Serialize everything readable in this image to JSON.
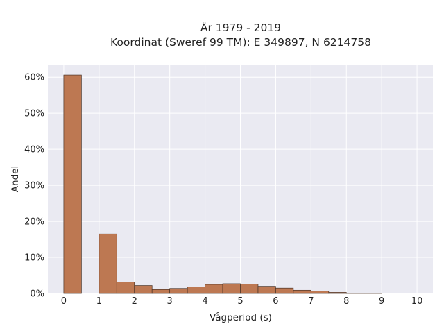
{
  "chart_data": {
    "type": "bar",
    "title_line1": "År 1979 - 2019",
    "title_line2": "Koordinat (Sweref 99 TM): E 349897, N 6214758",
    "xlabel": "Vågperiod (s)",
    "ylabel": "Andel",
    "xlim": [
      -0.45,
      10.45
    ],
    "ylim": [
      0,
      0.635
    ],
    "xticks": [
      0,
      1,
      2,
      3,
      4,
      5,
      6,
      7,
      8,
      9,
      10
    ],
    "xtick_labels": [
      "0",
      "1",
      "2",
      "3",
      "4",
      "5",
      "6",
      "7",
      "8",
      "9",
      "10"
    ],
    "yticks": [
      0,
      0.1,
      0.2,
      0.3,
      0.4,
      0.5,
      0.6
    ],
    "ytick_labels": [
      "0%",
      "10%",
      "20%",
      "30%",
      "40%",
      "50%",
      "60%"
    ],
    "bin_width": 0.5,
    "bins": [
      {
        "start": 0.0,
        "value": 0.606
      },
      {
        "start": 0.5,
        "value": 0.0
      },
      {
        "start": 1.0,
        "value": 0.165
      },
      {
        "start": 1.5,
        "value": 0.032
      },
      {
        "start": 2.0,
        "value": 0.022
      },
      {
        "start": 2.5,
        "value": 0.011
      },
      {
        "start": 3.0,
        "value": 0.014
      },
      {
        "start": 3.5,
        "value": 0.018
      },
      {
        "start": 4.0,
        "value": 0.025
      },
      {
        "start": 4.5,
        "value": 0.027
      },
      {
        "start": 5.0,
        "value": 0.026
      },
      {
        "start": 5.5,
        "value": 0.02
      },
      {
        "start": 6.0,
        "value": 0.015
      },
      {
        "start": 6.5,
        "value": 0.009
      },
      {
        "start": 7.0,
        "value": 0.007
      },
      {
        "start": 7.5,
        "value": 0.003
      },
      {
        "start": 8.0,
        "value": 0.001
      },
      {
        "start": 8.5,
        "value": 0.0005
      }
    ],
    "grid": true,
    "colors": {
      "bar_fill": "#bd7852",
      "bar_edge": "#4a3326",
      "plot_background": "#eaeaf2",
      "grid": "#ffffff"
    }
  }
}
